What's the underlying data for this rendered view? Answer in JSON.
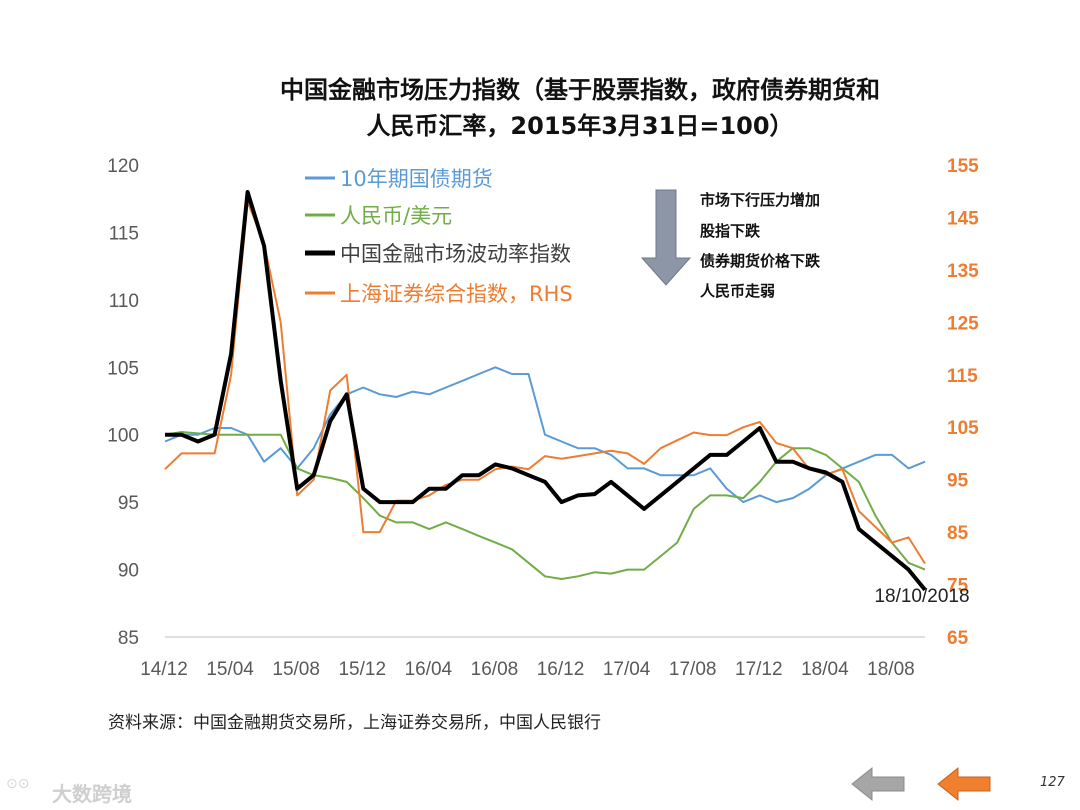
{
  "title_line1": "中国金融市场压力指数（基于股票指数，政府债券期货和",
  "title_line2": "人民币汇率，2015年3月31日=100）",
  "source": "资料来源：中国金融期货交易所，上海证券交易所，中国人民银行",
  "watermark": "大数跨境",
  "page_number": "127",
  "colors": {
    "bond": "#5b9bd5",
    "cny": "#70ad47",
    "vol": "#000000",
    "shanghai": "#ed7d31",
    "axis_left_text": "#595959",
    "axis_right_text": "#ed7d31",
    "arrow_down": "#8c96a6",
    "nav_prev": "#a6a6a6",
    "nav_next": "#f08030"
  },
  "annotation": {
    "lines": [
      "市场下行压力增加",
      "股指下跌",
      "债券期货价格下跌",
      "人民币走弱"
    ]
  },
  "end_label": "18/10/2018",
  "chart_data": {
    "type": "line",
    "x": [
      "2014-12",
      "2015-01",
      "2015-02",
      "2015-03",
      "2015-04",
      "2015-05",
      "2015-06",
      "2015-07",
      "2015-08",
      "2015-09",
      "2015-10",
      "2015-11",
      "2015-12",
      "2016-01",
      "2016-02",
      "2016-03",
      "2016-04",
      "2016-05",
      "2016-06",
      "2016-07",
      "2016-08",
      "2016-09",
      "2016-10",
      "2016-11",
      "2016-12",
      "2017-01",
      "2017-02",
      "2017-03",
      "2017-04",
      "2017-05",
      "2017-06",
      "2017-07",
      "2017-08",
      "2017-09",
      "2017-10",
      "2017-11",
      "2017-12",
      "2018-01",
      "2018-02",
      "2018-03",
      "2018-04",
      "2018-05",
      "2018-06",
      "2018-07",
      "2018-08",
      "2018-09",
      "2018-10"
    ],
    "xticks": [
      "14/12",
      "15/04",
      "15/08",
      "15/12",
      "16/04",
      "16/08",
      "16/12",
      "17/04",
      "17/08",
      "17/12",
      "18/04",
      "18/08"
    ],
    "y_left": {
      "ticks": [
        "120",
        "115",
        "110",
        "105",
        "100",
        "95",
        "90",
        "85"
      ],
      "ylim": [
        85,
        120
      ]
    },
    "y_right": {
      "ticks": [
        "155",
        "145",
        "135",
        "125",
        "115",
        "105",
        "95",
        "85",
        "75",
        "65"
      ],
      "ylim": [
        65,
        155
      ]
    },
    "series": [
      {
        "name": "10年期国债期货",
        "axis": "left",
        "values": [
          99.5,
          100,
          100,
          100.5,
          100.5,
          100,
          98,
          99,
          97.5,
          99,
          101.5,
          103,
          103.5,
          103,
          102.8,
          103.2,
          103,
          103.5,
          104,
          104.5,
          105,
          104.5,
          104.5,
          100,
          99.5,
          99,
          99,
          98.5,
          97.5,
          97.5,
          97,
          97,
          97,
          97.5,
          96,
          95,
          95.5,
          95,
          95.3,
          96,
          97,
          97.5,
          98,
          98.5,
          98.5,
          97.5,
          98
        ]
      },
      {
        "name": "人民币/美元",
        "axis": "left",
        "values": [
          100,
          100.2,
          100.1,
          100,
          100,
          100,
          100,
          100,
          97.5,
          97,
          96.8,
          96.5,
          95.3,
          94,
          93.5,
          93.5,
          93,
          93.5,
          93,
          92.5,
          92,
          91.5,
          90.5,
          89.5,
          89.3,
          89.5,
          89.8,
          89.7,
          90,
          90,
          91,
          92,
          94.5,
          95.5,
          95.5,
          95.3,
          96.5,
          98,
          99,
          99,
          98.5,
          97.5,
          96.5,
          94,
          92,
          90.5,
          90
        ]
      },
      {
        "name": "中国金融市场波动率指数",
        "axis": "left",
        "values": [
          100,
          100,
          99.5,
          100,
          106,
          118,
          114,
          104,
          96,
          97,
          101,
          103,
          96,
          95,
          95,
          95,
          96,
          96,
          97,
          97,
          97.8,
          97.5,
          97,
          96.5,
          95,
          95.5,
          95.6,
          96.5,
          95.5,
          94.5,
          95.5,
          96.5,
          97.5,
          98.5,
          98.5,
          99.5,
          100.5,
          98,
          98,
          97.5,
          97.2,
          96.5,
          93,
          92,
          91,
          90,
          88.5
        ]
      },
      {
        "name": "上海证券综合指数，RHS",
        "axis": "right",
        "values": [
          97,
          100,
          100,
          100,
          115,
          148,
          140,
          125,
          92,
          95,
          112,
          115,
          85,
          85,
          91,
          91,
          92,
          94,
          95,
          95,
          97,
          97.5,
          97,
          99.5,
          99,
          99.5,
          100,
          100.5,
          100,
          98,
          101,
          102.5,
          104,
          103.5,
          103.5,
          105,
          106,
          102,
          101,
          97,
          96,
          97,
          89,
          86,
          83,
          84,
          79
        ]
      }
    ]
  }
}
